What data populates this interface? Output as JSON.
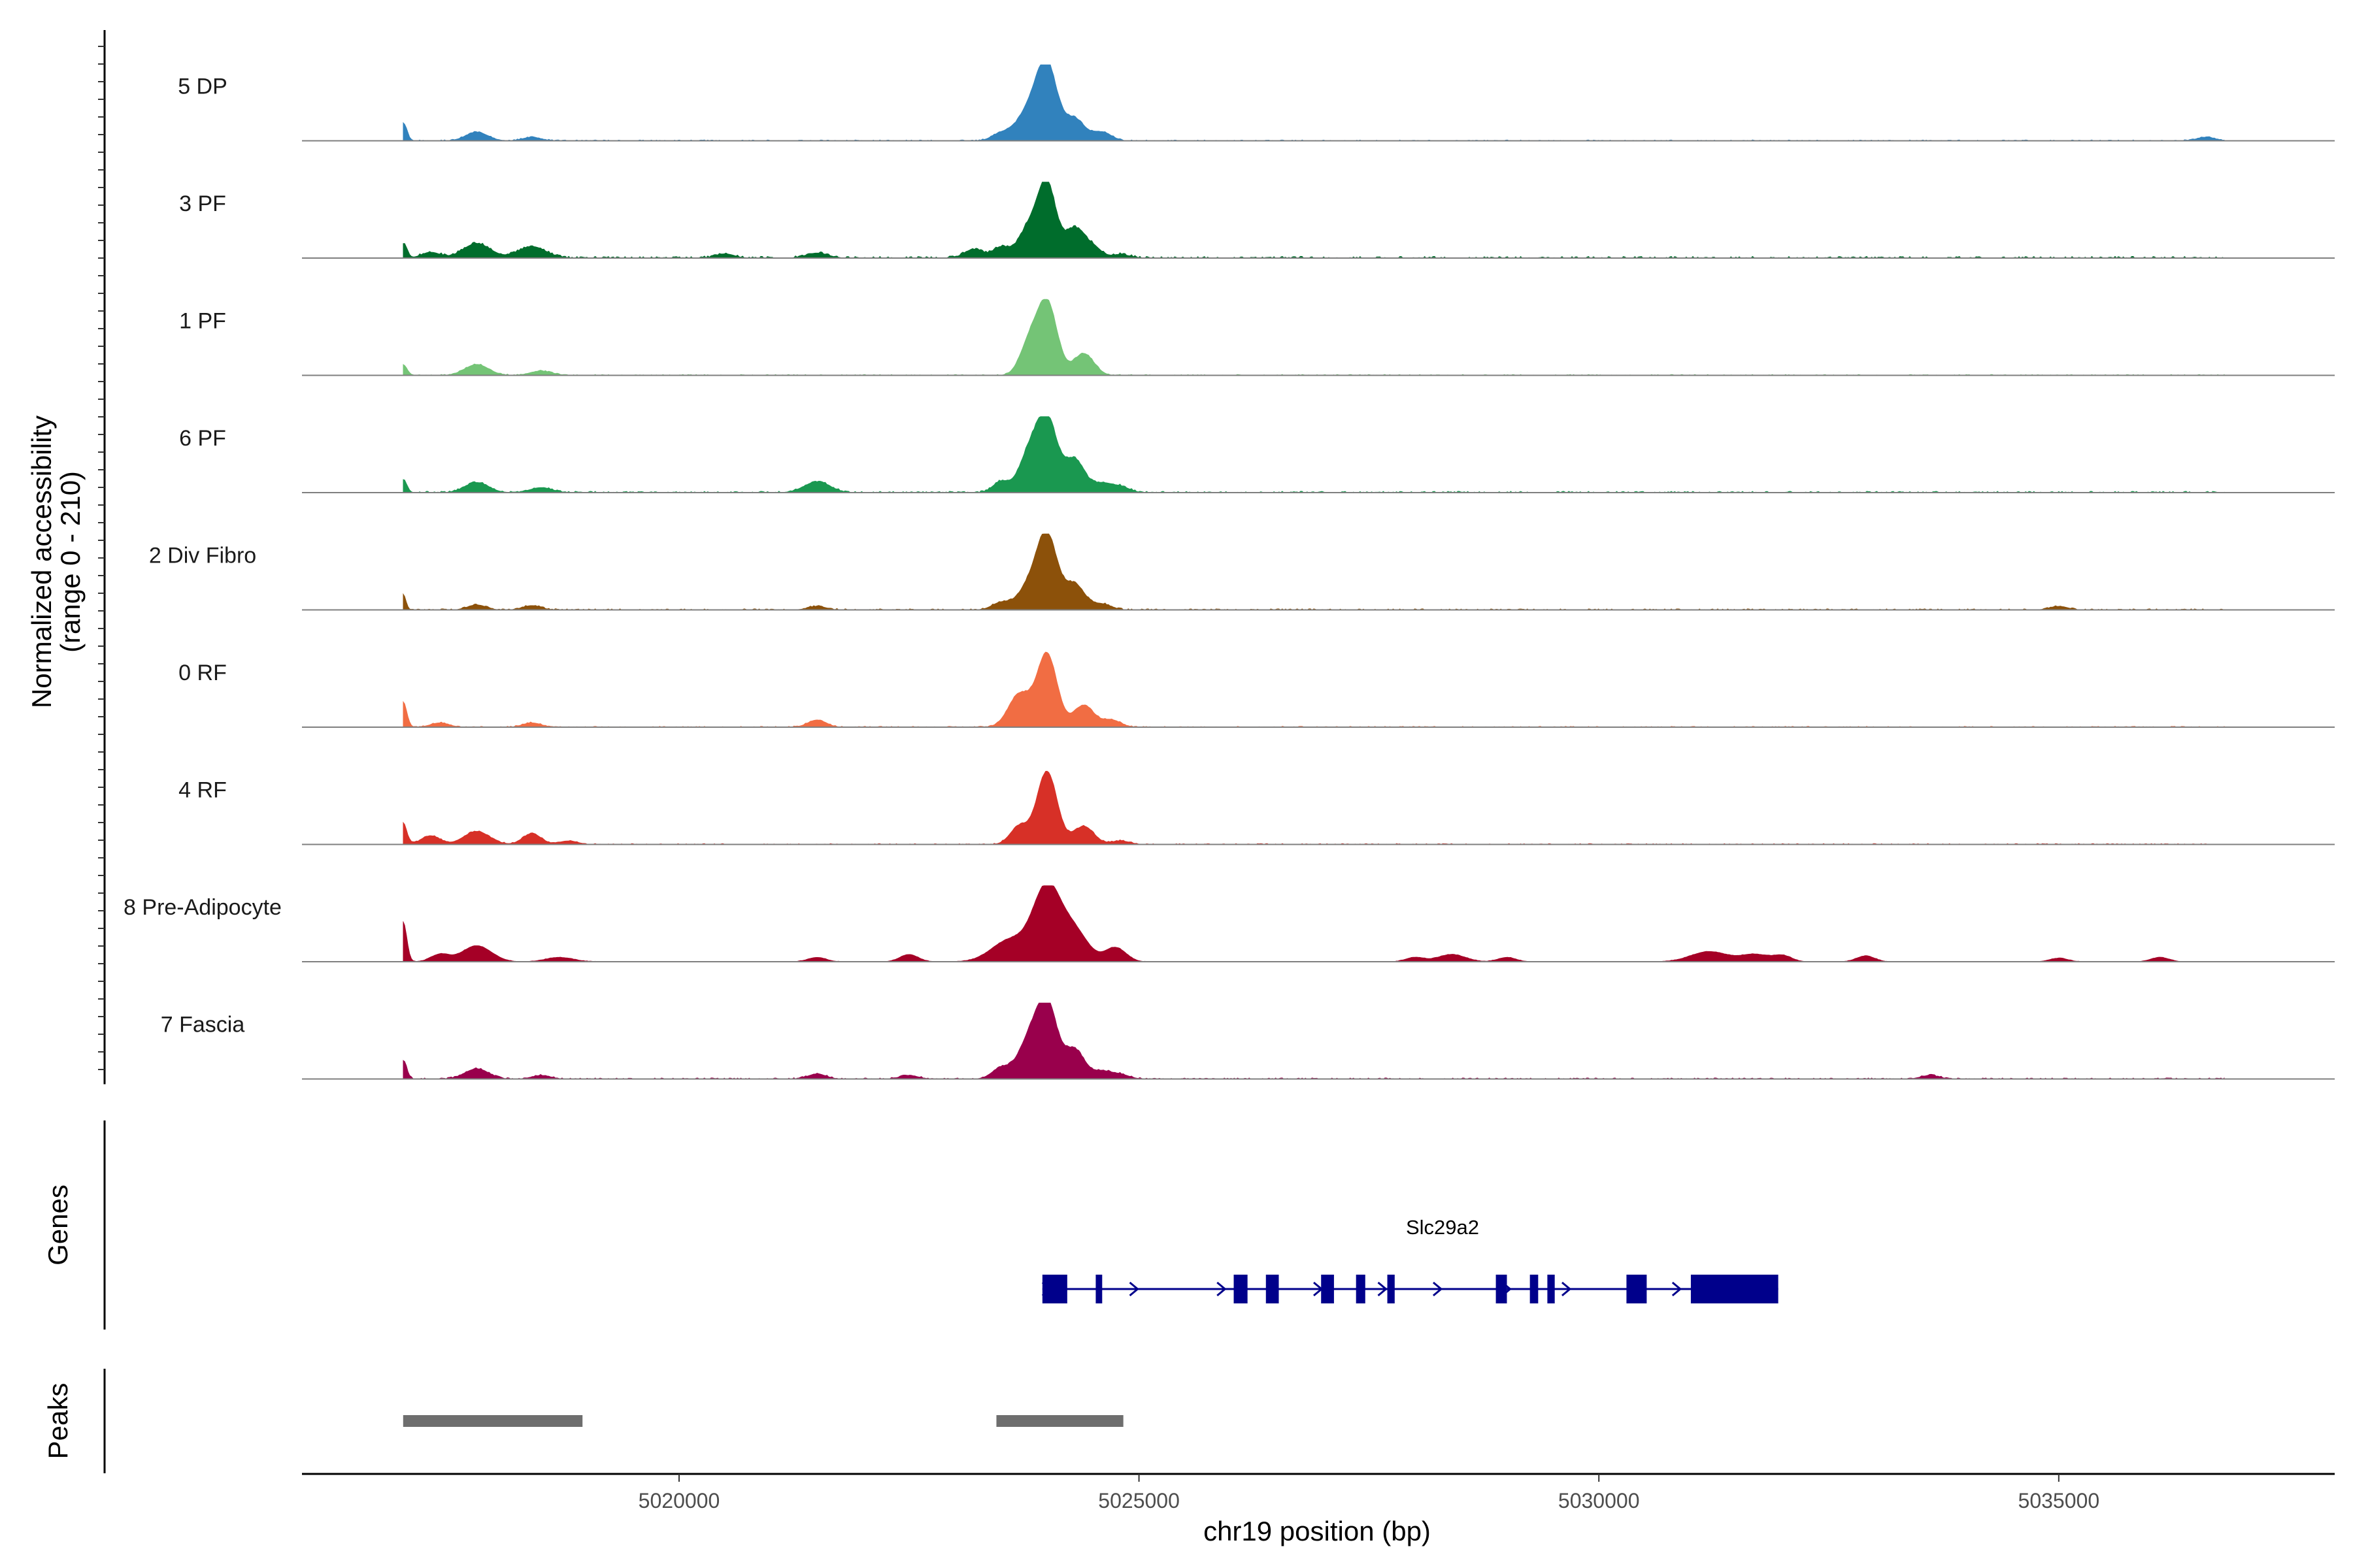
{
  "chart_data": {
    "type": "area",
    "title": "",
    "ylabel": "Normalized accessibility",
    "ylabel_range": "(range 0 - 210)",
    "ylim": [
      0,
      210
    ],
    "xlabel": "chr19 position (bp)",
    "xlim": [
      5015900,
      5038000
    ],
    "x_ticks": [
      5020000,
      5025000,
      5030000,
      5035000
    ],
    "x_tick_labels": [
      "5020000",
      "5025000",
      "5030000",
      "5035000"
    ],
    "series": [
      {
        "name": "5 DP",
        "color": "#3182bd",
        "noise": 0.8,
        "peaks": [
          [
            5017000,
            25,
            40
          ],
          [
            5017800,
            12,
            120
          ],
          [
            5018400,
            5,
            100
          ],
          [
            5023500,
            10,
            100
          ],
          [
            5023800,
            40,
            130
          ],
          [
            5024000,
            100,
            110
          ],
          [
            5024300,
            30,
            110
          ],
          [
            5024600,
            12,
            100
          ],
          [
            5036600,
            5,
            100
          ]
        ]
      },
      {
        "name": "3 PF",
        "color": "#006d2c",
        "noise": 1.5,
        "peaks": [
          [
            5017000,
            20,
            40
          ],
          [
            5017300,
            8,
            100
          ],
          [
            5017800,
            20,
            150
          ],
          [
            5018400,
            16,
            150
          ],
          [
            5020500,
            6,
            100
          ],
          [
            5021500,
            7,
            120
          ],
          [
            5023200,
            12,
            100
          ],
          [
            5023500,
            15,
            90
          ],
          [
            5023800,
            40,
            110
          ],
          [
            5024000,
            100,
            100
          ],
          [
            5024300,
            40,
            100
          ],
          [
            5024500,
            15,
            90
          ],
          [
            5024800,
            5,
            100
          ]
        ]
      },
      {
        "name": "1 PF",
        "color": "#74c476",
        "noise": 0.8,
        "peaks": [
          [
            5017000,
            15,
            40
          ],
          [
            5017800,
            15,
            130
          ],
          [
            5018500,
            6,
            120
          ],
          [
            5023800,
            40,
            100
          ],
          [
            5024000,
            100,
            110
          ],
          [
            5024400,
            30,
            110
          ]
        ]
      },
      {
        "name": "6 PF",
        "color": "#1a9850",
        "noise": 1.2,
        "peaks": [
          [
            5017000,
            18,
            40
          ],
          [
            5017800,
            14,
            130
          ],
          [
            5018500,
            7,
            120
          ],
          [
            5021500,
            15,
            140
          ],
          [
            5023500,
            15,
            90
          ],
          [
            5023800,
            50,
            110
          ],
          [
            5024000,
            100,
            110
          ],
          [
            5024300,
            45,
            110
          ],
          [
            5024600,
            12,
            100
          ],
          [
            5024800,
            8,
            100
          ]
        ]
      },
      {
        "name": "2 Div Fibro",
        "color": "#8c510a",
        "noise": 1.0,
        "peaks": [
          [
            5017000,
            22,
            30
          ],
          [
            5017800,
            7,
            100
          ],
          [
            5018400,
            6,
            100
          ],
          [
            5021500,
            5,
            100
          ],
          [
            5023500,
            10,
            100
          ],
          [
            5023800,
            30,
            120
          ],
          [
            5024000,
            100,
            110
          ],
          [
            5024300,
            35,
            110
          ],
          [
            5024600,
            8,
            100
          ],
          [
            5035000,
            5,
            100
          ]
        ]
      },
      {
        "name": "0 RF",
        "color": "#f16d43",
        "noise": 0.8,
        "peaks": [
          [
            5017000,
            35,
            40
          ],
          [
            5017400,
            6,
            100
          ],
          [
            5018400,
            6,
            100
          ],
          [
            5021500,
            10,
            100
          ],
          [
            5023700,
            45,
            120
          ],
          [
            5024000,
            100,
            110
          ],
          [
            5024400,
            30,
            110
          ],
          [
            5024700,
            10,
            100
          ]
        ]
      },
      {
        "name": "4 RF",
        "color": "#d73027",
        "noise": 0.8,
        "peaks": [
          [
            5017000,
            30,
            40
          ],
          [
            5017300,
            12,
            100
          ],
          [
            5017800,
            18,
            140
          ],
          [
            5018400,
            15,
            100
          ],
          [
            5018800,
            5,
            100
          ],
          [
            5023700,
            25,
            100
          ],
          [
            5024000,
            100,
            110
          ],
          [
            5024400,
            25,
            110
          ],
          [
            5024800,
            5,
            100
          ]
        ]
      },
      {
        "name": "8 Pre-Adipocyte",
        "color": "#a50026",
        "noise": 0.3,
        "peaks": [
          [
            5017000,
            55,
            40
          ],
          [
            5017400,
            10,
            100
          ],
          [
            5017800,
            22,
            160
          ],
          [
            5018700,
            6,
            150
          ],
          [
            5021500,
            6,
            100
          ],
          [
            5022500,
            10,
            100
          ],
          [
            5023600,
            30,
            200
          ],
          [
            5024000,
            100,
            150
          ],
          [
            5024300,
            40,
            150
          ],
          [
            5024700,
            12,
            100
          ],
          [
            5024800,
            10,
            100
          ],
          [
            5028000,
            6,
            100
          ],
          [
            5028400,
            10,
            150
          ],
          [
            5029000,
            6,
            100
          ],
          [
            5031200,
            14,
            200
          ],
          [
            5031700,
            10,
            150
          ],
          [
            5032000,
            8,
            100
          ],
          [
            5032900,
            8,
            100
          ],
          [
            5035000,
            5,
            100
          ],
          [
            5036100,
            6,
            100
          ]
        ]
      },
      {
        "name": "7 Fascia",
        "color": "#99004c",
        "noise": 1.0,
        "peaks": [
          [
            5017000,
            25,
            40
          ],
          [
            5017800,
            14,
            130
          ],
          [
            5018500,
            5,
            100
          ],
          [
            5021500,
            7,
            100
          ],
          [
            5022500,
            5,
            100
          ],
          [
            5023500,
            15,
            100
          ],
          [
            5023800,
            50,
            120
          ],
          [
            5024000,
            100,
            110
          ],
          [
            5024300,
            40,
            110
          ],
          [
            5024600,
            10,
            100
          ],
          [
            5024800,
            6,
            100
          ],
          [
            5033600,
            5,
            100
          ]
        ]
      }
    ],
    "gene": {
      "name": "Slc29a2",
      "color": "#00008b",
      "start": 5023950,
      "end": 5031950,
      "strand": "+",
      "exons": [
        [
          5023950,
          5024220
        ],
        [
          5024530,
          5024600
        ],
        [
          5026030,
          5026180
        ],
        [
          5026380,
          5026520
        ],
        [
          5026980,
          5027120
        ],
        [
          5027360,
          5027460
        ],
        [
          5027700,
          5027780
        ],
        [
          5028880,
          5029000
        ],
        [
          5029250,
          5029340
        ],
        [
          5029440,
          5029520
        ],
        [
          5030300,
          5030520
        ],
        [
          5031000,
          5031950
        ]
      ],
      "arrows": [
        5024000,
        5024950,
        5025900,
        5026950,
        5027650,
        5028250,
        5029000,
        5029650,
        5030850
      ]
    },
    "peaks_track": {
      "color": "#6e6e6e",
      "regions": [
        [
          5017000,
          5018950
        ],
        [
          5023450,
          5024830
        ]
      ]
    },
    "panel_titles": {
      "genes": "Genes",
      "peaks": "Peaks"
    }
  }
}
